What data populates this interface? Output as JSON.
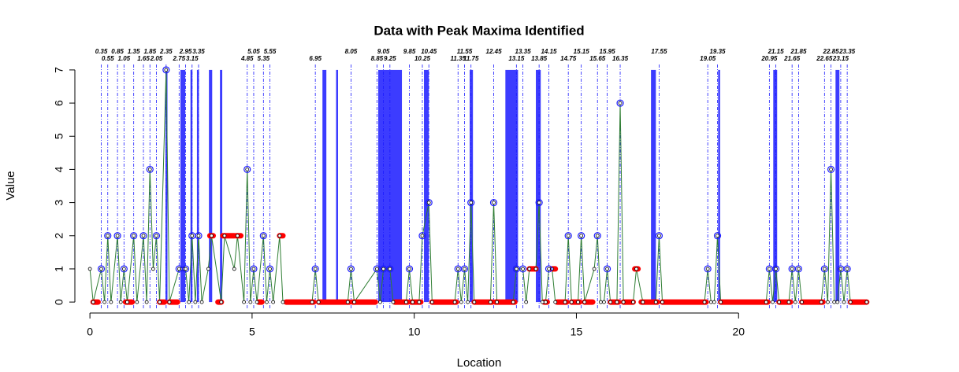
{
  "chart_data": {
    "type": "peaks",
    "title": "Data with Peak Maxima Identified",
    "x_label": "Location",
    "y_label": "Value",
    "xlim": [
      -0.1,
      24.1
    ],
    "ylim": [
      -0.33,
      7.33
    ],
    "xticks": [
      0,
      5,
      10,
      15,
      20
    ],
    "yticks": [
      0,
      1,
      2,
      3,
      4,
      5,
      6,
      7
    ],
    "series": [
      {
        "color": "#2e7d32",
        "x": [
          0,
          0.1,
          0.35,
          0.45,
          0.55,
          0.65,
          0.85,
          0.95,
          1.05,
          1.15,
          1.35,
          1.45,
          1.65,
          1.75,
          1.85,
          1.95,
          2.05,
          2.15,
          2.35,
          2.45,
          2.75,
          2.85,
          2.95,
          3.05,
          3.15,
          3.25,
          3.35,
          3.45,
          3.65,
          3.75,
          4.05,
          4.15,
          4.45,
          4.55,
          4.75,
          4.85,
          4.95,
          5.05,
          5.15,
          5.35,
          5.45,
          5.55,
          5.65,
          5.85,
          5.95,
          6.85,
          6.95,
          7.05,
          7.95,
          8.05,
          8.15,
          8.85,
          8.95,
          9.05,
          9.25,
          9.35,
          9.75,
          9.85,
          9.95,
          10.15,
          10.25,
          10.45,
          10.55,
          11.25,
          11.35,
          11.45,
          11.55,
          11.65,
          11.75,
          11.85,
          12.35,
          12.45,
          12.55,
          13.05,
          13.15,
          13.35,
          13.45,
          13.55,
          13.75,
          13.85,
          13.95,
          14.05,
          14.15,
          14.25,
          14.35,
          14.65,
          14.75,
          14.85,
          15.05,
          15.15,
          15.25,
          15.55,
          15.65,
          15.75,
          15.85,
          15.95,
          16.05,
          16.25,
          16.35,
          16.45,
          16.75,
          16.85,
          17.05,
          17.45,
          17.55,
          17.65,
          18.95,
          19.05,
          19.15,
          19.25,
          19.35,
          19.45,
          20.85,
          20.95,
          21.05,
          21.15,
          21.25,
          21.55,
          21.65,
          21.75,
          21.85,
          21.95,
          22.55,
          22.65,
          22.75,
          22.85,
          22.95,
          23.05,
          23.15,
          23.25,
          23.35,
          23.45,
          23.95
        ],
        "values": [
          1,
          0,
          1,
          0,
          2,
          0,
          2,
          0,
          1,
          0,
          2,
          0,
          2,
          0,
          4,
          1,
          2,
          0,
          7,
          0,
          1,
          1,
          1,
          0,
          2,
          0,
          2,
          0,
          1,
          2,
          0,
          2,
          1,
          2,
          0,
          4,
          0,
          1,
          0,
          2,
          0,
          1,
          0,
          2,
          0,
          0,
          1,
          0,
          0,
          1,
          0,
          1,
          0,
          1,
          1,
          0,
          0,
          1,
          0,
          0,
          2,
          3,
          0,
          0,
          1,
          0,
          1,
          0,
          3,
          0,
          0,
          3,
          0,
          0,
          1,
          1,
          0,
          1,
          1,
          3,
          0,
          0,
          1,
          1,
          0,
          0,
          2,
          0,
          0,
          2,
          0,
          1,
          2,
          0,
          0,
          1,
          0,
          0,
          6,
          0,
          0,
          1,
          0,
          0,
          2,
          0,
          0,
          1,
          0,
          0,
          2,
          0,
          0,
          1,
          0,
          1,
          0,
          0,
          1,
          0,
          1,
          0,
          0,
          1,
          0,
          4,
          0,
          0,
          1,
          0,
          1,
          0,
          0
        ]
      }
    ],
    "peaks": {
      "color": "#1a1aff",
      "x": [
        0.35,
        0.55,
        0.85,
        1.05,
        1.35,
        1.65,
        1.85,
        2.05,
        2.35,
        2.75,
        2.95,
        3.15,
        3.35,
        4.85,
        5.05,
        5.35,
        5.55,
        6.95,
        8.05,
        8.85,
        9.05,
        9.25,
        9.85,
        10.25,
        10.45,
        11.35,
        11.55,
        11.75,
        12.45,
        13.15,
        13.35,
        13.85,
        14.15,
        14.75,
        15.15,
        15.65,
        15.95,
        16.35,
        17.55,
        19.05,
        19.35,
        20.95,
        21.15,
        21.65,
        21.85,
        22.65,
        22.85,
        23.15,
        23.35
      ],
      "values": [
        1,
        2,
        2,
        1,
        2,
        2,
        4,
        2,
        7,
        1,
        1,
        2,
        2,
        4,
        1,
        2,
        1,
        1,
        1,
        1,
        1,
        1,
        1,
        2,
        3,
        1,
        1,
        3,
        3,
        1,
        1,
        3,
        1,
        2,
        2,
        2,
        1,
        6,
        2,
        1,
        2,
        1,
        1,
        1,
        1,
        1,
        4,
        1,
        1
      ]
    },
    "flats": {
      "color": "#ff0000",
      "start": [
        0.1,
        1.1,
        2.15,
        2.45,
        3.7,
        3.95,
        4.1,
        4.5,
        5.2,
        5.85,
        6.05,
        7.05,
        8.1,
        9.4,
        9.9,
        10.55,
        11.85,
        12.5,
        13.55,
        14.0,
        14.25,
        14.4,
        14.85,
        15.25,
        16.05,
        16.45,
        16.8,
        17.0,
        17.65,
        19.45,
        21.25,
        21.95,
        23.45
      ],
      "end": [
        0.25,
        1.3,
        2.3,
        2.7,
        3.8,
        4.05,
        4.45,
        4.65,
        5.3,
        5.95,
        6.9,
        8.0,
        8.8,
        9.8,
        10.2,
        11.3,
        12.4,
        13.1,
        13.75,
        14.1,
        14.35,
        14.7,
        15.1,
        15.5,
        16.3,
        16.75,
        16.9,
        17.5,
        19.0,
        20.9,
        21.6,
        22.6,
        23.95
      ],
      "values": [
        0,
        0,
        0,
        0,
        2,
        0,
        2,
        2,
        0,
        2,
        0,
        0,
        0,
        0,
        0,
        0,
        0,
        0,
        1,
        0,
        1,
        0,
        0,
        0,
        0,
        0,
        1,
        0,
        0,
        0,
        0,
        0,
        0
      ]
    },
    "bands": {
      "color": "#1a1aff",
      "start": [
        2.33,
        2.79,
        3.1,
        3.3,
        3.67,
        4.01,
        7.17,
        7.59,
        8.89,
        10.3,
        11.71,
        12.81,
        13.75,
        17.3,
        19.37,
        21.07,
        22.99
      ],
      "end": [
        2.39,
        2.94,
        3.16,
        3.36,
        3.77,
        4.08,
        7.29,
        7.64,
        9.62,
        10.45,
        11.81,
        13.2,
        13.9,
        17.45,
        19.42,
        21.19,
        23.11
      ]
    }
  }
}
